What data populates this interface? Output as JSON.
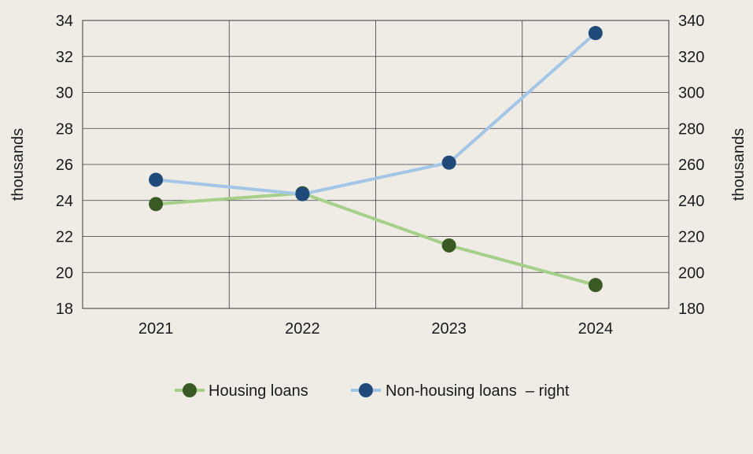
{
  "chart_data": {
    "type": "line",
    "categories": [
      "2021",
      "2022",
      "2023",
      "2024"
    ],
    "left_axis": {
      "label": "thousands",
      "ylim": [
        18,
        34
      ],
      "ticks": [
        "18",
        "20",
        "22",
        "24",
        "26",
        "28",
        "30",
        "32",
        "34"
      ]
    },
    "right_axis": {
      "label": "thousands",
      "ylim": [
        180,
        340
      ],
      "ticks": [
        "180",
        "200",
        "220",
        "240",
        "260",
        "280",
        "300",
        "320",
        "340"
      ]
    },
    "grid": true,
    "legend_position": "bottom",
    "series": [
      {
        "name": "Housing loans",
        "axis": "left",
        "values": [
          23.8,
          24.4,
          21.5,
          19.3
        ],
        "line_color": "#a6cf8a",
        "marker_color": "#3a5a24"
      },
      {
        "name": "Non-housing loans  – right",
        "axis": "right",
        "values": [
          251.5,
          243.5,
          261,
          333
        ],
        "line_color": "#a4c6e6",
        "marker_color": "#1f4a7a"
      }
    ]
  }
}
